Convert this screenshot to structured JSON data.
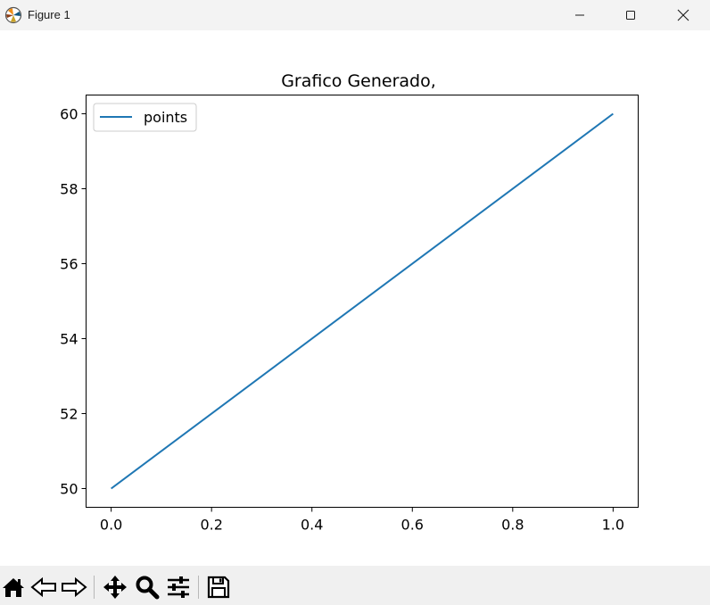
{
  "window": {
    "title": "Figure 1",
    "controls": [
      "minimize",
      "maximize",
      "close"
    ]
  },
  "toolbar": {
    "buttons": [
      {
        "name": "home",
        "icon": "home-icon"
      },
      {
        "name": "back",
        "icon": "back-arrow-icon"
      },
      {
        "name": "forward",
        "icon": "forward-arrow-icon"
      },
      {
        "name": "pan",
        "icon": "move-icon"
      },
      {
        "name": "zoom",
        "icon": "magnifier-icon"
      },
      {
        "name": "configure-subplots",
        "icon": "sliders-icon"
      },
      {
        "name": "save",
        "icon": "floppy-disk-icon"
      }
    ]
  },
  "chart_data": {
    "type": "line",
    "title": "Grafico Generado,",
    "xlabel": "",
    "ylabel": "",
    "xlim": [
      -0.05,
      1.05
    ],
    "ylim": [
      49.5,
      60.5
    ],
    "xticks": [
      0.0,
      0.2,
      0.4,
      0.6,
      0.8,
      1.0
    ],
    "xtick_labels": [
      "0.0",
      "0.2",
      "0.4",
      "0.6",
      "0.8",
      "1.0"
    ],
    "yticks": [
      50,
      52,
      54,
      56,
      58,
      60
    ],
    "ytick_labels": [
      "50",
      "52",
      "54",
      "56",
      "58",
      "60"
    ],
    "grid": false,
    "legend": "top-left",
    "series": [
      {
        "name": "points",
        "color": "#1f77b4",
        "x": [
          0.0,
          1.0
        ],
        "y": [
          50,
          60
        ]
      }
    ]
  }
}
